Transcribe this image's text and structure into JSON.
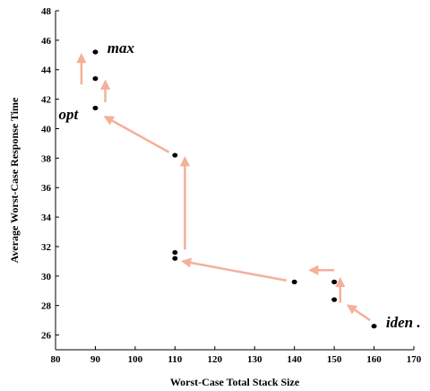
{
  "chart_data": {
    "type": "scatter",
    "xlabel": "Worst-Case Total Stack Size",
    "ylabel": "Average Worst-Case Response Time",
    "xlim": [
      80,
      170
    ],
    "ylim": [
      25,
      48
    ],
    "xticks": [
      80,
      90,
      100,
      110,
      120,
      130,
      140,
      150,
      160,
      170
    ],
    "yticks": [
      26,
      28,
      30,
      32,
      34,
      36,
      38,
      40,
      42,
      44,
      46,
      48
    ],
    "grid": false,
    "points": [
      {
        "x": 90,
        "y": 45.2
      },
      {
        "x": 90,
        "y": 43.4
      },
      {
        "x": 90,
        "y": 41.4
      },
      {
        "x": 110,
        "y": 38.2
      },
      {
        "x": 110,
        "y": 31.6
      },
      {
        "x": 110,
        "y": 31.2
      },
      {
        "x": 140,
        "y": 29.6
      },
      {
        "x": 150,
        "y": 29.6
      },
      {
        "x": 150,
        "y": 28.4
      },
      {
        "x": 160,
        "y": 26.6
      }
    ],
    "arrows": [
      {
        "from": [
          159,
          27.0
        ],
        "to": [
          153.5,
          28.0
        ]
      },
      {
        "from": [
          151.5,
          28.2
        ],
        "to": [
          151.5,
          29.8
        ]
      },
      {
        "from": [
          150,
          30.4
        ],
        "to": [
          144,
          30.4
        ]
      },
      {
        "from": [
          138,
          29.7
        ],
        "to": [
          112,
          31.0
        ]
      },
      {
        "from": [
          112.5,
          31.8
        ],
        "to": [
          112.5,
          38.0
        ]
      },
      {
        "from": [
          108.5,
          38.4
        ],
        "to": [
          92.5,
          40.8
        ]
      },
      {
        "from": [
          92.5,
          41.8
        ],
        "to": [
          92.5,
          43.2
        ]
      },
      {
        "from": [
          86.5,
          43.0
        ],
        "to": [
          86.5,
          45.0
        ]
      }
    ],
    "arrow_color": "#f4b09a",
    "point_color": "#000000",
    "annotations": [
      {
        "text": "max",
        "x": 93,
        "y": 45.5
      },
      {
        "text": "opt",
        "x": 80.8,
        "y": 41.0
      },
      {
        "text": "iden .",
        "x": 163,
        "y": 26.9
      }
    ]
  }
}
